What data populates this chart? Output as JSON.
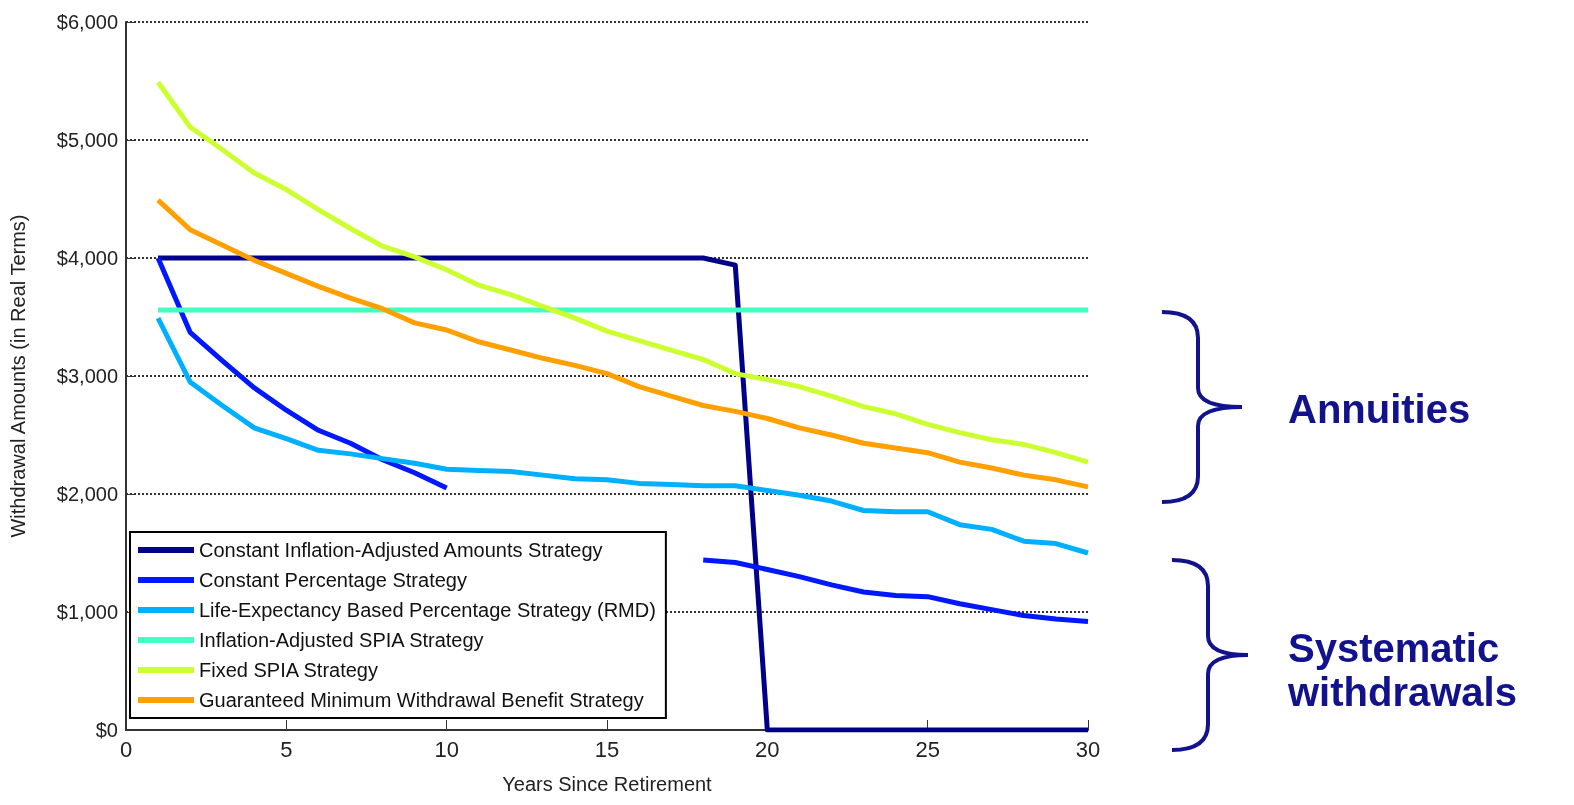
{
  "chart_data": {
    "type": "line",
    "xlabel": "Years Since Retirement",
    "ylabel": "Withdrawal Amounts (in Real Terms)",
    "x": [
      1,
      2,
      3,
      4,
      5,
      6,
      7,
      8,
      9,
      10,
      11,
      12,
      13,
      14,
      15,
      16,
      17,
      18,
      19,
      20,
      21,
      22,
      23,
      24,
      25,
      26,
      27,
      28,
      29,
      30
    ],
    "series": [
      {
        "name": "Constant Inflation-Adjusted Amounts Strategy",
        "color": "#000088",
        "values": [
          4000,
          4000,
          4000,
          4000,
          4000,
          4000,
          4000,
          4000,
          4000,
          4000,
          4000,
          4000,
          4000,
          4000,
          4000,
          4000,
          4000,
          4000,
          3940,
          0,
          0,
          0,
          0,
          0,
          0,
          0,
          0,
          0,
          0,
          0
        ]
      },
      {
        "name": "Constant Percentage Strategy",
        "color": "#0018ff",
        "values": [
          4000,
          3370,
          3130,
          2900,
          2710,
          2540,
          2430,
          2290,
          2180,
          2050,
          null,
          null,
          null,
          null,
          null,
          null,
          null,
          1440,
          1420,
          1360,
          1300,
          1230,
          1170,
          1140,
          1130,
          1070,
          1020,
          970,
          940,
          920
        ]
      },
      {
        "name": "Life-Expectancy Based Percentage Strategy (RMD)",
        "color": "#00b0ff",
        "values": [
          3490,
          2950,
          2750,
          2560,
          2470,
          2370,
          2340,
          2300,
          2260,
          2210,
          2200,
          2190,
          2160,
          2130,
          2120,
          2090,
          2080,
          2070,
          2070,
          2030,
          1990,
          1940,
          1860,
          1850,
          1850,
          1740,
          1700,
          1600,
          1580,
          1500
        ]
      },
      {
        "name": "Inflation-Adjusted SPIA Strategy",
        "color": "#40ffc0",
        "values": [
          3560,
          3560,
          3560,
          3560,
          3560,
          3560,
          3560,
          3560,
          3560,
          3560,
          3560,
          3560,
          3560,
          3560,
          3560,
          3560,
          3560,
          3560,
          3560,
          3560,
          3560,
          3560,
          3560,
          3560,
          3560,
          3560,
          3560,
          3560,
          3560,
          3560
        ]
      },
      {
        "name": "Fixed SPIA Strategy",
        "color": "#ccff30",
        "values": [
          5490,
          5110,
          4920,
          4720,
          4580,
          4410,
          4250,
          4100,
          4010,
          3900,
          3770,
          3690,
          3590,
          3490,
          3380,
          3300,
          3220,
          3140,
          3020,
          2970,
          2910,
          2830,
          2740,
          2680,
          2590,
          2520,
          2460,
          2420,
          2350,
          2270
        ]
      },
      {
        "name": "Guaranteed Minimum Withdrawal Benefit Strategy",
        "color": "#ffa000",
        "values": [
          4490,
          4240,
          4110,
          3980,
          3870,
          3760,
          3660,
          3570,
          3450,
          3390,
          3290,
          3220,
          3150,
          3090,
          3020,
          2910,
          2830,
          2750,
          2700,
          2640,
          2560,
          2500,
          2430,
          2390,
          2350,
          2270,
          2220,
          2160,
          2120,
          2060
        ]
      }
    ],
    "xlim": [
      0,
      30
    ],
    "xticks": [
      0,
      5,
      10,
      15,
      20,
      25,
      30
    ],
    "ylim": [
      0,
      6000
    ],
    "yticks": [
      {
        "value": 0,
        "label": "$0"
      },
      {
        "value": 1000,
        "label": "$1,000"
      },
      {
        "value": 2000,
        "label": "$2,000"
      },
      {
        "value": 3000,
        "label": "$3,000"
      },
      {
        "value": 4000,
        "label": "$4,000"
      },
      {
        "value": 5000,
        "label": "$5,000"
      },
      {
        "value": 6000,
        "label": "$6,000"
      }
    ],
    "grid": "y",
    "legend": "bottom left",
    "marker": "none",
    "line_style": "solid",
    "annotations": [
      "Annuities",
      "Systematic withdrawals"
    ]
  }
}
